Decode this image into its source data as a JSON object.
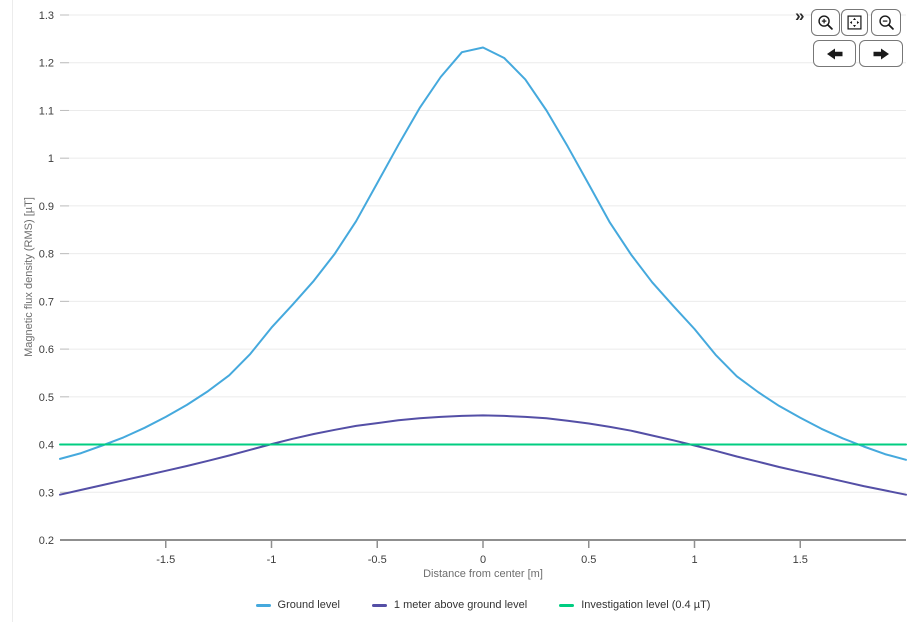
{
  "panel": {
    "background": "#ffffff",
    "left_border_color": "#ececec"
  },
  "toolbar": {
    "expander_glyph": "»",
    "buttons": [
      {
        "id": "zoom-in",
        "icon": "magnifier-plus-icon"
      },
      {
        "id": "zoom-extents",
        "icon": "square-arrows-out-icon"
      },
      {
        "id": "zoom-out",
        "icon": "magnifier-minus-icon"
      },
      {
        "id": "pan-left",
        "icon": "arrow-left-icon"
      },
      {
        "id": "pan-right",
        "icon": "arrow-right-icon"
      }
    ]
  },
  "chart_data": {
    "type": "line",
    "title": "",
    "xlabel": "Distance from center [m]",
    "ylabel": "Magnetic flux density (RMS) [µT]",
    "xlim": [
      -2,
      2
    ],
    "ylim": [
      0.2,
      1.3
    ],
    "xticks": [
      -1.5,
      -1,
      -0.5,
      0,
      0.5,
      1,
      1.5
    ],
    "xtick_labels": [
      "-1.5",
      "-1",
      "-0.5",
      "0",
      "0.5",
      "1",
      "1.5"
    ],
    "yticks": [
      0.2,
      0.3,
      0.4,
      0.5,
      0.6,
      0.7,
      0.8,
      0.9,
      1.0,
      1.1,
      1.2,
      1.3
    ],
    "ytick_labels": [
      "0.2",
      "0.3",
      "0.4",
      "0.5",
      "0.6",
      "0.7",
      "0.8",
      "0.9",
      "1",
      "1.1",
      "1.2",
      "1.3"
    ],
    "grid": "horizontal",
    "gridline_color": "#ebebeb",
    "axis_color": "#8f8f8f",
    "legend_position": "bottom-center",
    "series": [
      {
        "id": "ground",
        "name": "Ground level",
        "color": "#45a9dd",
        "x_start": -2,
        "x_step": 0.1,
        "y": [
          0.37,
          0.382,
          0.398,
          0.415,
          0.435,
          0.458,
          0.483,
          0.512,
          0.545,
          0.59,
          0.645,
          0.693,
          0.743,
          0.8,
          0.868,
          0.948,
          1.028,
          1.105,
          1.17,
          1.222,
          1.232,
          1.21,
          1.165,
          1.1,
          1.025,
          0.945,
          0.865,
          0.798,
          0.74,
          0.69,
          0.642,
          0.588,
          0.543,
          0.51,
          0.481,
          0.456,
          0.433,
          0.413,
          0.396,
          0.38,
          0.368
        ]
      },
      {
        "id": "above",
        "name": "1 meter above ground level",
        "color": "#544fa6",
        "x_start": -2,
        "x_step": 0.1,
        "y": [
          0.295,
          0.305,
          0.315,
          0.325,
          0.335,
          0.345,
          0.355,
          0.366,
          0.377,
          0.389,
          0.401,
          0.412,
          0.422,
          0.431,
          0.439,
          0.445,
          0.451,
          0.455,
          0.458,
          0.46,
          0.461,
          0.46,
          0.458,
          0.455,
          0.45,
          0.444,
          0.437,
          0.429,
          0.419,
          0.409,
          0.398,
          0.387,
          0.375,
          0.364,
          0.353,
          0.343,
          0.333,
          0.323,
          0.313,
          0.304,
          0.295
        ]
      },
      {
        "id": "investigation",
        "name": "Investigation level (0.4 µT)",
        "color": "#00cd81",
        "x_start": -2,
        "x_step": 4,
        "y": [
          0.4,
          0.4
        ]
      }
    ]
  }
}
